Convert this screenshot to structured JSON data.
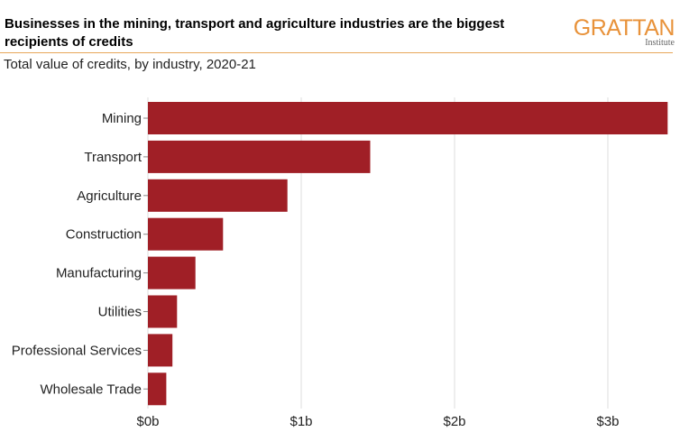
{
  "header": {
    "title": "Businesses in the mining, transport and agriculture industries are the biggest recipients of credits",
    "subtitle": "Total value of credits, by industry, 2020-21",
    "logo_text": "GRATTAN",
    "logo_subtext": "Institute",
    "accent_color": "#e8923a"
  },
  "chart_data": {
    "type": "bar",
    "orientation": "horizontal",
    "title": "Businesses in the mining, transport and agriculture industries are the biggest recipients of credits",
    "subtitle": "Total value of credits, by industry, 2020-21",
    "xlabel": "",
    "ylabel": "",
    "categories": [
      "Mining",
      "Transport",
      "Agriculture",
      "Construction",
      "Manufacturing",
      "Utilities",
      "Professional Services",
      "Wholesale Trade"
    ],
    "values": [
      3.39,
      1.45,
      0.91,
      0.49,
      0.31,
      0.19,
      0.16,
      0.12
    ],
    "unit": "$ billion",
    "xlim": [
      0,
      3.4
    ],
    "xticks": [
      0,
      1,
      2,
      3
    ],
    "xtick_labels": [
      "$0b",
      "$1b",
      "$2b",
      "$3b"
    ],
    "grid": "vertical",
    "bar_color": "#a01f26"
  }
}
